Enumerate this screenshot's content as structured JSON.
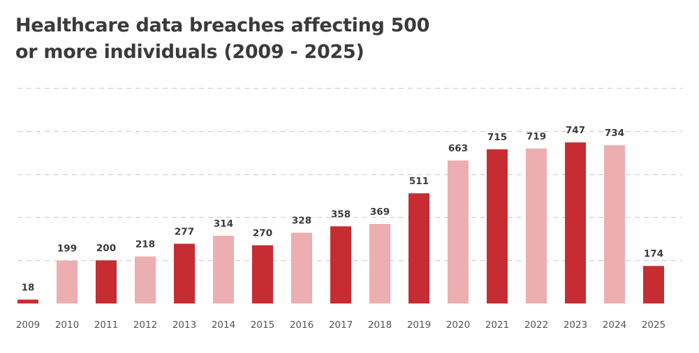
{
  "chart_data": {
    "type": "bar",
    "title": "Healthcare data breaches affecting 500 or more individuals (2009 - 2025)",
    "xlabel": "",
    "ylabel": "",
    "categories": [
      "2009",
      "2010",
      "2011",
      "2012",
      "2013",
      "2014",
      "2015",
      "2016",
      "2017",
      "2018",
      "2019",
      "2020",
      "2021",
      "2022",
      "2023",
      "2024",
      "2025"
    ],
    "values": [
      18,
      199,
      200,
      218,
      277,
      314,
      270,
      328,
      358,
      369,
      511,
      663,
      715,
      719,
      747,
      734,
      174
    ],
    "ylim": [
      0,
      1000
    ],
    "grid": true,
    "legend": "none",
    "colors": {
      "dark": "#c72c33",
      "light": "#ecaeb0",
      "text": "#3a3a3a",
      "tick": "#555555",
      "grid": "#c9c9c9"
    },
    "bar_color_pattern": [
      "dark",
      "light",
      "dark",
      "light",
      "dark",
      "light",
      "dark",
      "light",
      "dark",
      "light",
      "dark",
      "light",
      "dark",
      "light",
      "dark",
      "light",
      "dark"
    ]
  }
}
